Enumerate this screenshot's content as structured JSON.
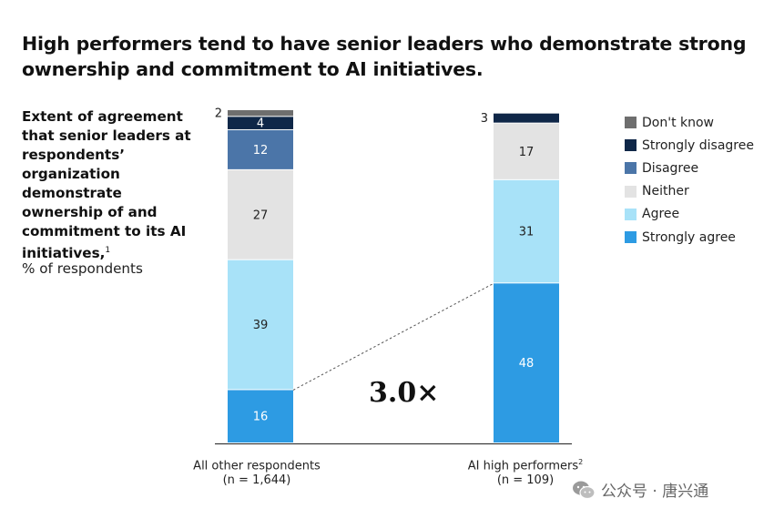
{
  "title": "High performers tend to have senior leaders who demonstrate strong ownership and commitment to AI initiatives.",
  "axis_title": {
    "main": "Extent of agreement that senior leaders at respondents’ organization demonstrate ownership of and commitment to its AI initiatives,",
    "footnote": "1",
    "unit": "% of respondents"
  },
  "ratio_label": "3.0×",
  "watermark": "公众号 · 唐兴通",
  "chart_data": {
    "type": "bar",
    "stacked": true,
    "categories": [
      {
        "label": "All other respondents",
        "footnote": "",
        "n": "(n = 1,644)"
      },
      {
        "label": "AI high performers",
        "footnote": "2",
        "n": "(n = 109)"
      }
    ],
    "series": [
      {
        "name": "Strongly agree",
        "color": "#2d9be3",
        "values": [
          16,
          48
        ]
      },
      {
        "name": "Agree",
        "color": "#a8e2f8",
        "values": [
          39,
          31
        ]
      },
      {
        "name": "Neither",
        "color": "#e3e3e3",
        "values": [
          27,
          17
        ]
      },
      {
        "name": "Disagree",
        "color": "#4b75a8",
        "values": [
          12,
          0
        ]
      },
      {
        "name": "Strongly disagree",
        "color": "#0f2748",
        "values": [
          4,
          3
        ]
      },
      {
        "name": "Don't know",
        "color": "#6e6e6e",
        "values": [
          2,
          0
        ]
      }
    ],
    "legend_order": [
      "Don't know",
      "Strongly disagree",
      "Disagree",
      "Neither",
      "Agree",
      "Strongly agree"
    ],
    "legend_position": "top-right",
    "ylim": [
      0,
      100
    ]
  }
}
